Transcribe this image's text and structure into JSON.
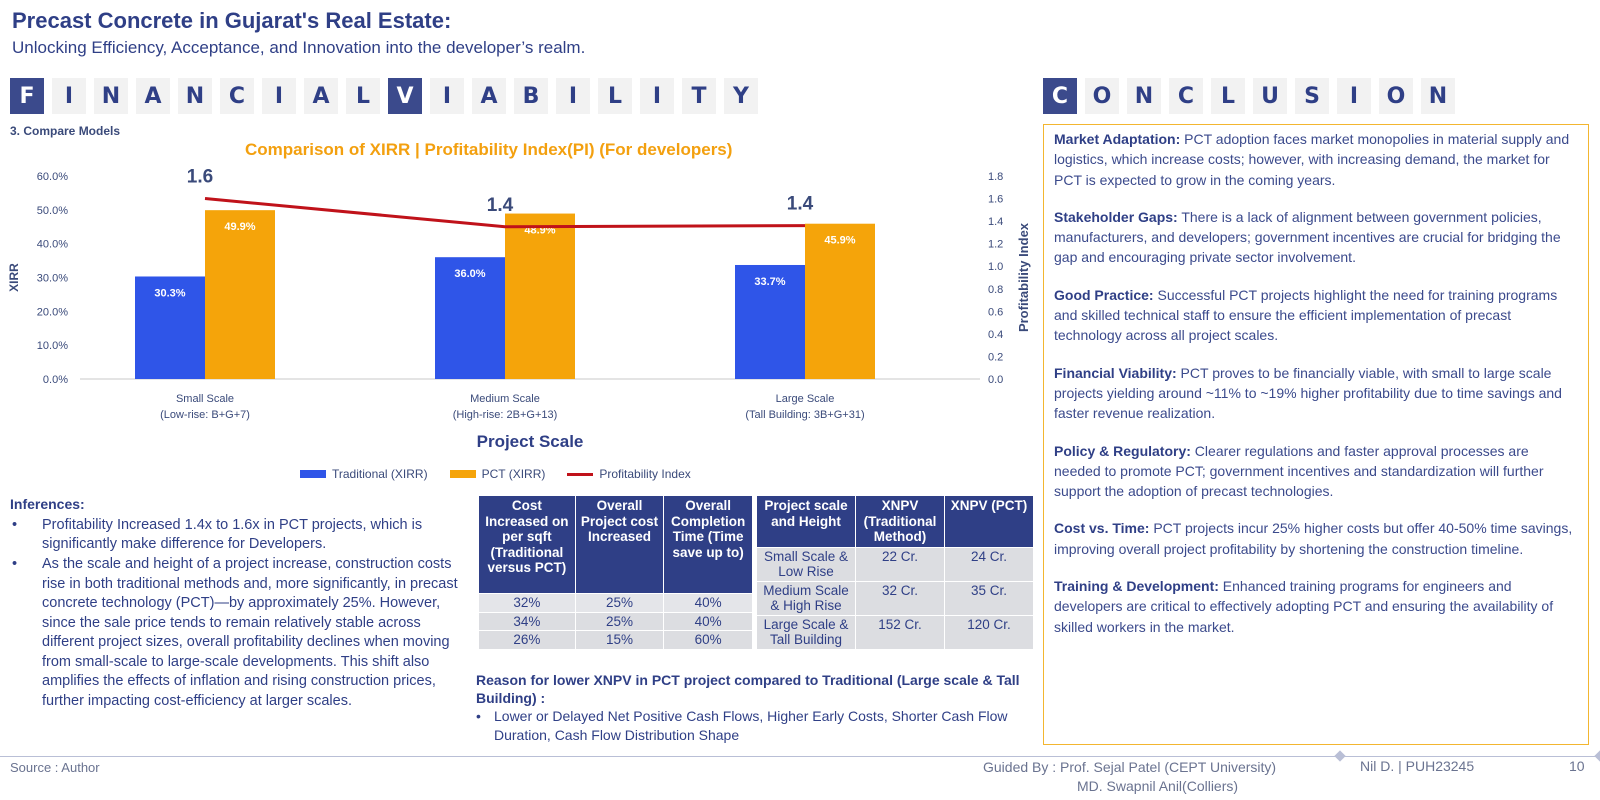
{
  "header": {
    "title": "Precast Concrete in Gujarat's Real Estate:",
    "subtitle": "Unlocking Efficiency, Acceptance, and Innovation into the developer’s realm."
  },
  "left_banner": {
    "letters": [
      "F",
      "I",
      "N",
      "A",
      "N",
      "C",
      "I",
      "A",
      "L",
      "V",
      "I",
      "A",
      "B",
      "I",
      "L",
      "I",
      "T",
      "Y"
    ],
    "highlighted": [
      0,
      9
    ]
  },
  "right_banner": {
    "letters": [
      "C",
      "O",
      "N",
      "C",
      "L",
      "U",
      "S",
      "I",
      "O",
      "N"
    ],
    "highlighted": [
      0
    ]
  },
  "section_label": "3. Compare Models",
  "chart_title": "Comparison of XIRR | Profitability Index(PI) (For developers)",
  "chart_data": {
    "type": "bar",
    "title": "Comparison of XIRR | Profitability Index(PI) (For developers)",
    "xlabel": "Project Scale",
    "ylabel": "XIRR",
    "y2label": "Profitability Index",
    "categories": [
      "Small Scale\n(Low-rise: B+G+7)",
      "Medium Scale\n(High-rise: 2B+G+13)",
      "Large Scale\n(Tall Building: 3B+G+31)"
    ],
    "ylim": [
      0,
      60
    ],
    "y_ticks": [
      "0.0%",
      "10.0%",
      "20.0%",
      "30.0%",
      "40.0%",
      "50.0%",
      "60.0%"
    ],
    "y2lim": [
      0,
      1.8
    ],
    "y2_ticks": [
      "0.0",
      "0.2",
      "0.4",
      "0.6",
      "0.8",
      "1.0",
      "1.2",
      "1.4",
      "1.6",
      "1.8"
    ],
    "series": [
      {
        "name": "Traditional (XIRR)",
        "kind": "bar",
        "color": "#2f55e8",
        "values": [
          30.3,
          36.0,
          33.7
        ],
        "labels": [
          "30.3%",
          "36.0%",
          "33.7%"
        ]
      },
      {
        "name": "PCT (XIRR)",
        "kind": "bar",
        "color": "#f5a40a",
        "values": [
          49.9,
          48.9,
          45.9
        ],
        "labels": [
          "49.9%",
          "48.9%",
          "45.9%"
        ]
      },
      {
        "name": "Profitability Index",
        "kind": "line",
        "axis": "secondary",
        "color": "#c0121a",
        "values": [
          1.6,
          1.35,
          1.36
        ],
        "labels": [
          "1.6",
          "1.4",
          "1.4"
        ]
      }
    ],
    "legend": "bottom",
    "grid": false
  },
  "legend": {
    "traditional": "Traditional (XIRR)",
    "pct": "PCT (XIRR)",
    "pi": "Profitability Index"
  },
  "inferences": {
    "head": "Inferences:",
    "items": [
      "Profitability Increased 1.4x to 1.6x in PCT projects, which is significantly make difference for Developers.",
      "As the scale and height of a project increase, construction costs rise in both traditional methods and, more significantly, in precast concrete technology (PCT)—by approximately 25%. However, since the sale price tends to remain relatively stable across different project sizes, overall profitability declines when moving from small-scale to large-scale developments. This shift also amplifies the effects of inflation and rising construction prices, further impacting cost-efficiency at larger scales."
    ]
  },
  "cost_table": {
    "headers": [
      "Cost Increased on per sqft (Traditional versus PCT)",
      "Overall Project cost Increased",
      "Overall Completion Time (Time save up to)"
    ],
    "rows": [
      [
        "32%",
        "25%",
        "40%"
      ],
      [
        "34%",
        "25%",
        "40%"
      ],
      [
        "26%",
        "15%",
        "60%"
      ]
    ]
  },
  "xnpv_table": {
    "headers": [
      "Project scale and Height",
      "XNPV (Traditional Method)",
      "XNPV (PCT)"
    ],
    "rows": [
      [
        "Small Scale & Low Rise",
        "22 Cr.",
        "24 Cr."
      ],
      [
        "Medium Scale & High Rise",
        "32 Cr.",
        "35 Cr."
      ],
      [
        "Large Scale & Tall Building",
        "152 Cr.",
        "120 Cr."
      ]
    ]
  },
  "reason": {
    "head": "Reason for lower XNPV in PCT project compared to Traditional (Large scale & Tall Building) :",
    "item": "Lower or Delayed Net Positive Cash Flows, Higher Early Costs, Shorter Cash Flow Duration, Cash Flow Distribution Shape"
  },
  "conclusion": [
    {
      "head": "Market Adaptation:",
      "text": " PCT adoption faces market monopolies in material supply and logistics, which increase costs; however, with increasing demand, the market for PCT is expected to grow in the coming years."
    },
    {
      "head": "Stakeholder Gaps:",
      "text": " There is a lack of alignment between government policies, manufacturers, and developers; government incentives are crucial for bridging the gap and encouraging private sector involvement."
    },
    {
      "head": "Good Practice:",
      "text": " Successful PCT projects highlight the need for training programs and skilled technical staff to ensure the efficient implementation of precast technology across all project scales."
    },
    {
      "head": "Financial Viability:",
      "text": " PCT proves to be financially viable, with small to large  scale projects yielding around ~11% to ~19% higher profitability due to time savings and faster revenue realization."
    },
    {
      "head": "Policy & Regulatory:",
      "text": "  Clearer regulations and faster approval processes are needed to promote PCT; government incentives and standardization will further support the adoption of precast technologies."
    },
    {
      "head": "Cost vs. Time:",
      "text": " PCT projects incur 25% higher costs but offer 40-50% time savings, improving overall project profitability by shortening the construction timeline."
    },
    {
      "head": "Training & Development:",
      "text": " Enhanced training programs for engineers and developers are critical to effectively adopting PCT and ensuring the availability of skilled workers in the market."
    }
  ],
  "footer": {
    "source": "Source : Author",
    "guided_1": "Guided By : Prof. Sejal Patel (CEPT University)",
    "guided_2": "MD. Swapnil Anil(Colliers)",
    "roll": "Nil D. | PUH23245",
    "page": "10"
  }
}
